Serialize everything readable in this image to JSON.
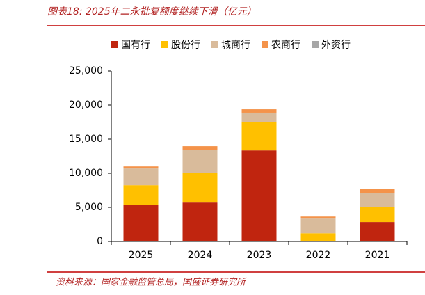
{
  "chart_data": {
    "type": "stacked_bar",
    "title": "图表18: 2025年二永批复额度继续下滑（亿元）",
    "source": "资料来源：国家金融监管总局，国盛证券研究所",
    "categories": [
      "2025",
      "2024",
      "2023",
      "2022",
      "2021"
    ],
    "series": [
      {
        "name": "国有行",
        "color": "#c0250f",
        "values": [
          5400,
          5700,
          13350,
          0,
          2850
        ]
      },
      {
        "name": "股份行",
        "color": "#ffc000",
        "values": [
          2850,
          4300,
          4100,
          1200,
          2150
        ]
      },
      {
        "name": "城商行",
        "color": "#d9bb9b",
        "values": [
          2450,
          3370,
          1430,
          2150,
          2050
        ]
      },
      {
        "name": "农商行",
        "color": "#f4934a",
        "values": [
          300,
          600,
          500,
          300,
          700
        ]
      },
      {
        "name": "外资行",
        "color": "#a6a6a6",
        "values": [
          0,
          0,
          0,
          0,
          0
        ]
      }
    ],
    "ylim": [
      0,
      25000
    ],
    "yticks": [
      0,
      {
        "value": 5000,
        "label": "5,000"
      },
      {
        "value": 10000,
        "label": "10,000"
      },
      {
        "value": 15000,
        "label": "15,000"
      },
      {
        "value": 20000,
        "label": "20,000"
      },
      {
        "value": 25000,
        "label": "25,000"
      }
    ],
    "legend": "top"
  }
}
